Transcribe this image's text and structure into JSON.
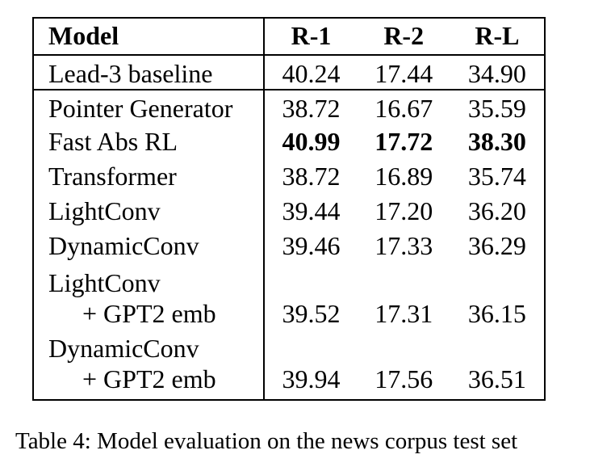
{
  "table": {
    "headers": [
      "Model",
      "R-1",
      "R-2",
      "R-L"
    ],
    "rows": [
      {
        "model": "Lead-3 baseline",
        "r1": "40.24",
        "r2": "17.44",
        "rl": "34.90"
      },
      {
        "model": "Pointer Generator",
        "r1": "38.72",
        "r2": "16.67",
        "rl": "35.59"
      },
      {
        "model": "Fast Abs RL",
        "r1": "40.99",
        "r2": "17.72",
        "rl": "38.30",
        "bold": true
      },
      {
        "model": "Transformer",
        "r1": "38.72",
        "r2": "16.89",
        "rl": "35.74"
      },
      {
        "model": "LightConv",
        "r1": "39.44",
        "r2": "17.20",
        "rl": "36.20"
      },
      {
        "model": "DynamicConv",
        "r1": "39.46",
        "r2": "17.33",
        "rl": "36.29"
      },
      {
        "model": "LightConv",
        "model_line2": "+ GPT2 emb",
        "r1": "39.52",
        "r2": "17.31",
        "rl": "36.15"
      },
      {
        "model": "DynamicConv",
        "model_line2": "+ GPT2 emb",
        "r1": "39.94",
        "r2": "17.56",
        "rl": "36.51"
      }
    ]
  },
  "caption": "Table 4: Model evaluation on the news corpus test set"
}
